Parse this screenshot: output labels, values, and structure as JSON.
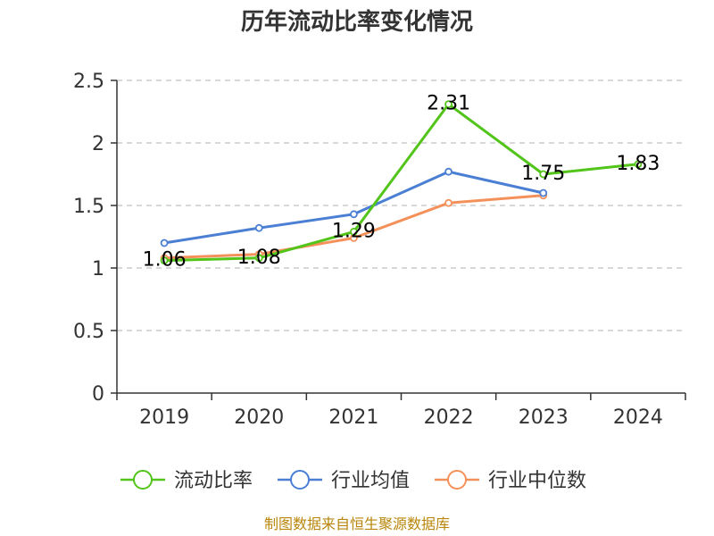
{
  "chart_data": {
    "type": "line",
    "title": "历年流动比率变化情况",
    "categories": [
      "2019",
      "2020",
      "2021",
      "2022",
      "2023",
      "2024"
    ],
    "ylim": [
      0,
      2.5
    ],
    "yticks": [
      "0",
      "0.5",
      "1",
      "1.5",
      "2",
      "2.5"
    ],
    "ytick_values": [
      0,
      0.5,
      1,
      1.5,
      2,
      2.5
    ],
    "grid": true,
    "legend_position": "bottom",
    "series": [
      {
        "name": "流动比率",
        "color": "#52c41a",
        "values": [
          1.06,
          1.08,
          1.29,
          2.31,
          1.75,
          1.83
        ],
        "labels": [
          "1.06",
          "1.08",
          "1.29",
          "2.31",
          "1.75",
          "1.83"
        ]
      },
      {
        "name": "行业均值",
        "color": "#4a7fd4",
        "values": [
          1.2,
          1.32,
          1.43,
          1.77,
          1.6,
          null
        ]
      },
      {
        "name": "行业中位数",
        "color": "#f4915a",
        "values": [
          1.08,
          1.11,
          1.24,
          1.52,
          1.58,
          null
        ]
      }
    ],
    "source": "制图数据来自恒生聚源数据库"
  }
}
